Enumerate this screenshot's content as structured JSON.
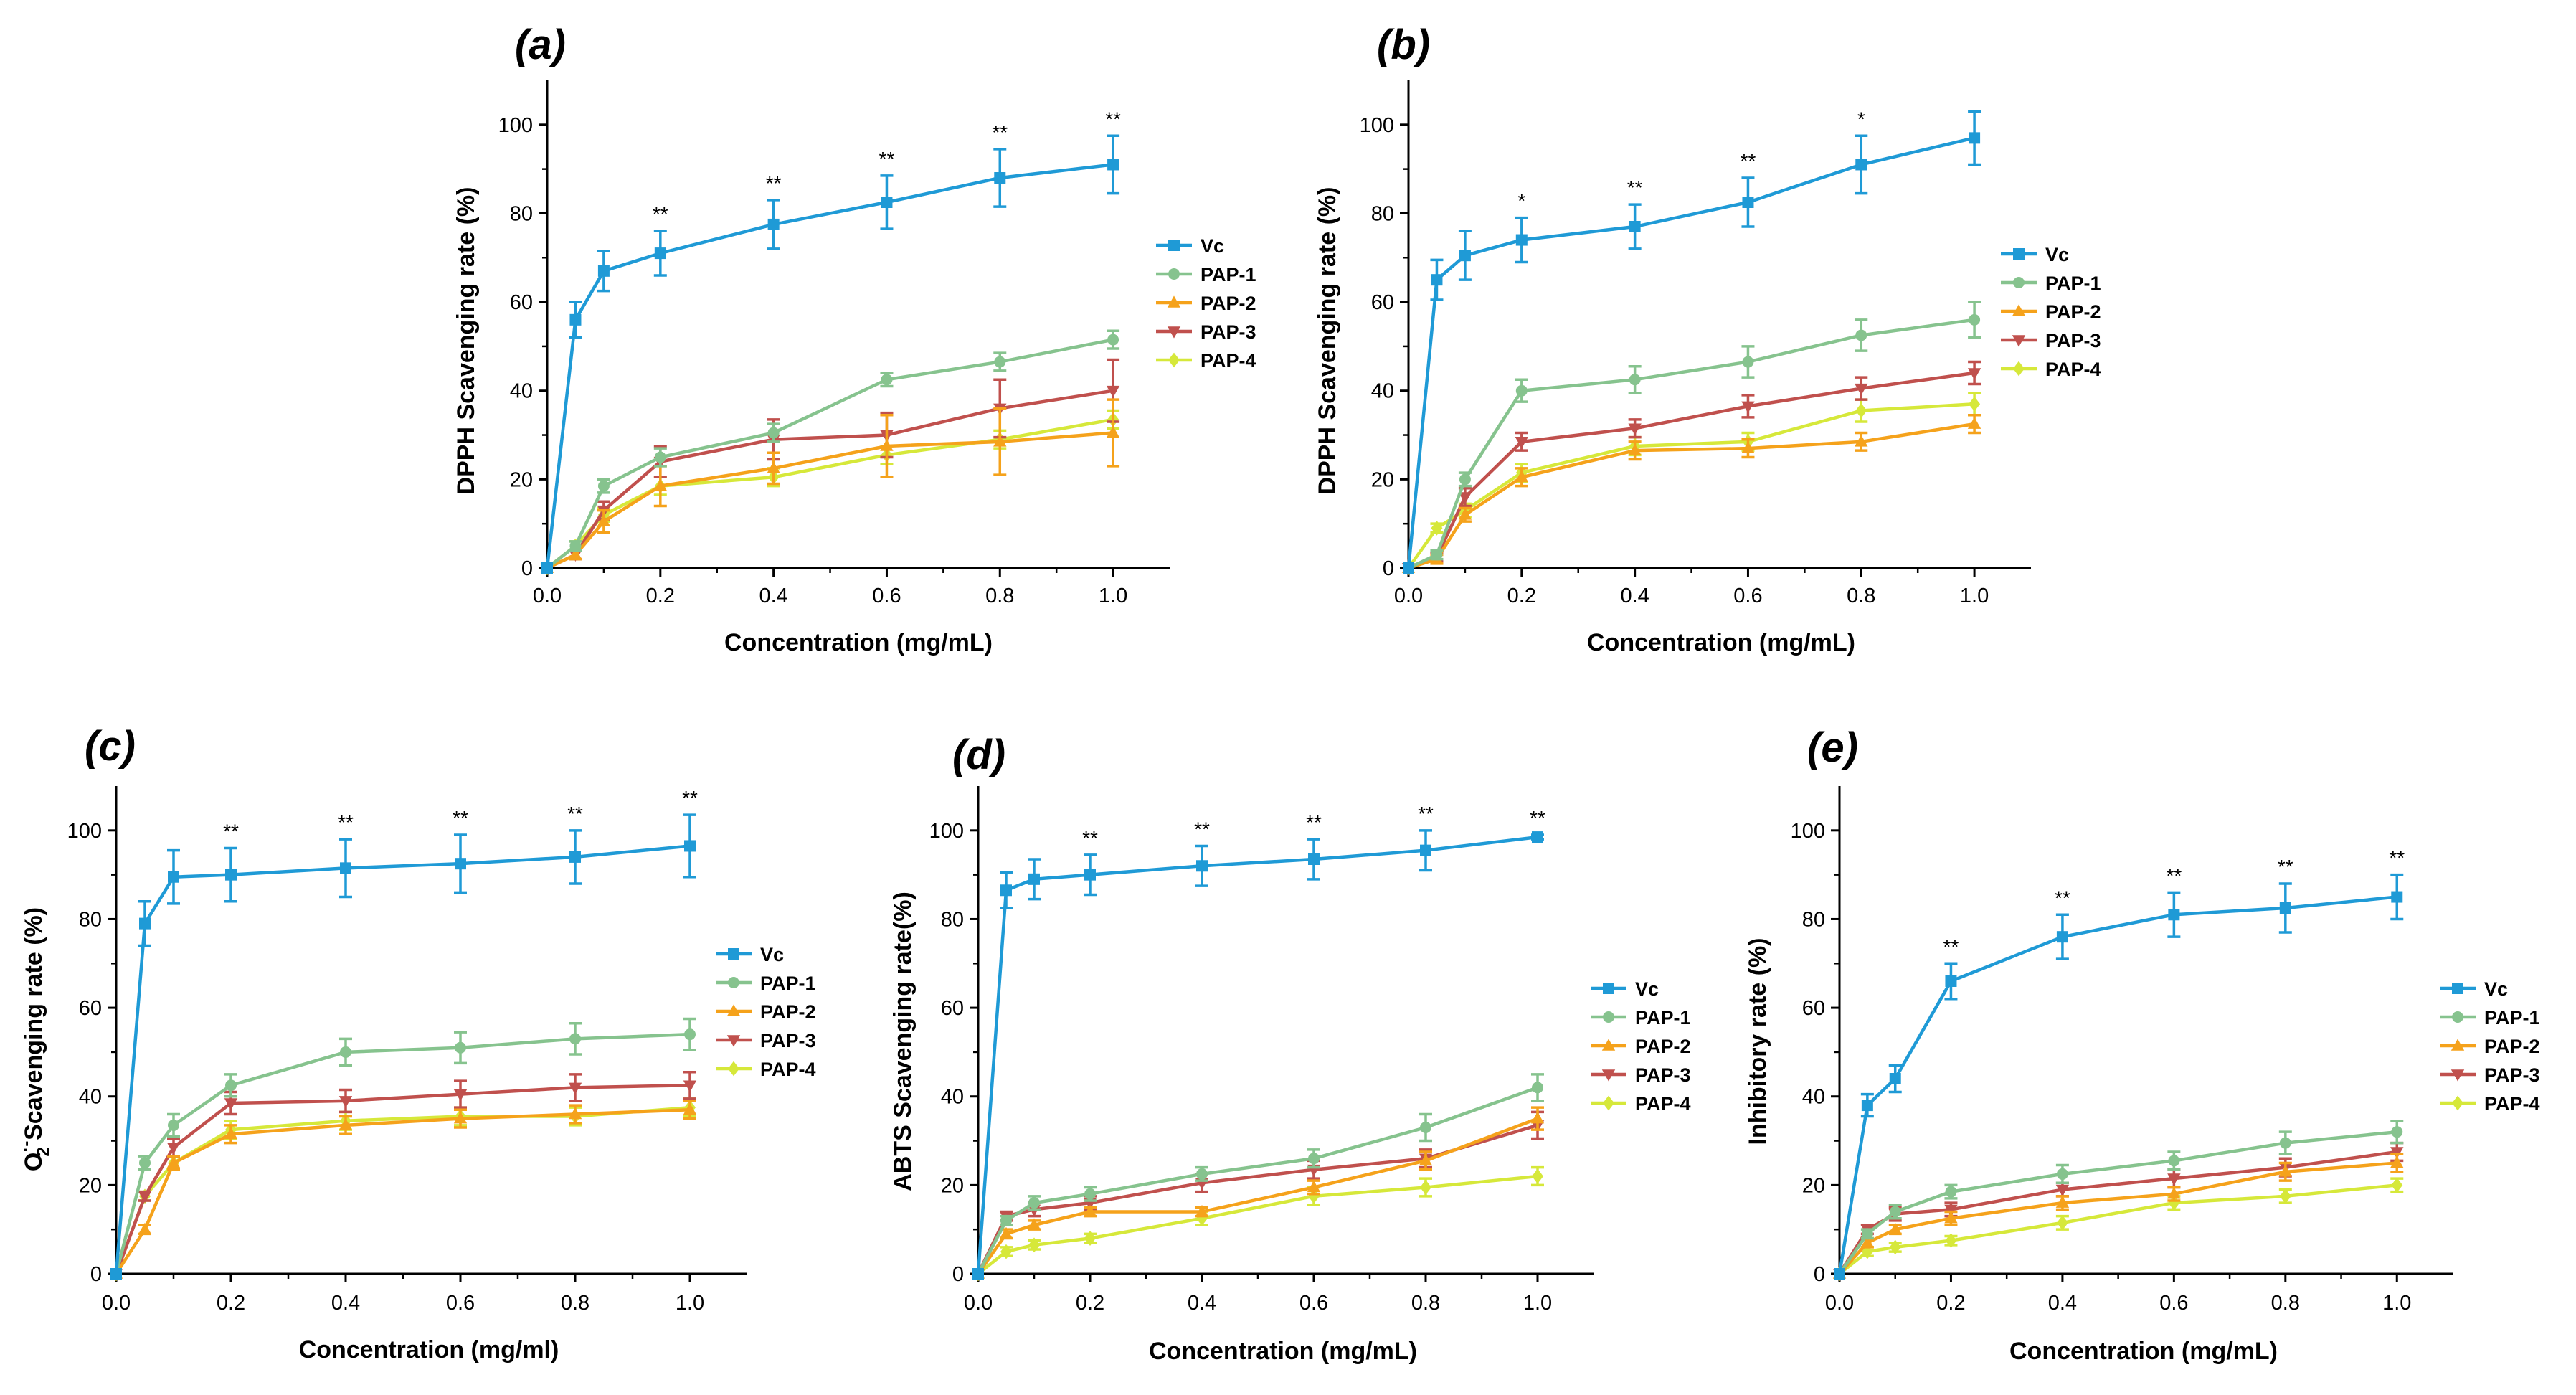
{
  "figure": {
    "panels": [
      "(a)",
      "(b)",
      "(c)",
      "(d)",
      "(e)"
    ]
  },
  "series_colors": {
    "Vc": "#1f9ad6",
    "PAP-1": "#86c38e",
    "PAP-2": "#f5a21b",
    "PAP-3": "#c0504d",
    "PAP-4": "#d6e83a"
  },
  "chart_data": [
    {
      "id": "a",
      "type": "line",
      "panel_label": "(a)",
      "xlabel": "Concentration (mg/mL)",
      "ylabel": "DPPH Scavenging rate (%)",
      "xlim": [
        0.0,
        1.1
      ],
      "ylim": [
        0,
        110
      ],
      "xticks": [
        0.0,
        0.2,
        0.4,
        0.6,
        0.8,
        1.0
      ],
      "xtick_labels": [
        "0.0",
        "0.2",
        "0.4",
        "0.6",
        "0.8",
        "1.0"
      ],
      "yticks": [
        0,
        20,
        40,
        60,
        80,
        100
      ],
      "ytick_labels": [
        "0",
        "20",
        "40",
        "60",
        "80",
        "100"
      ],
      "x": [
        0,
        0.05,
        0.1,
        0.2,
        0.4,
        0.6,
        0.8,
        1.0
      ],
      "series": [
        {
          "name": "Vc",
          "marker": "square",
          "values": [
            0,
            56,
            67,
            71,
            77.5,
            82.5,
            88,
            91
          ],
          "errors": [
            0,
            4,
            4.5,
            5,
            5.5,
            6,
            6.5,
            6.5
          ]
        },
        {
          "name": "PAP-1",
          "marker": "circle",
          "values": [
            0,
            5,
            18.5,
            25,
            30.5,
            42.5,
            46.5,
            51.5
          ],
          "errors": [
            0,
            1,
            1.5,
            2,
            2,
            1.5,
            2,
            2
          ]
        },
        {
          "name": "PAP-2",
          "marker": "triangle-up",
          "values": [
            0,
            3,
            10.5,
            18.5,
            22.5,
            27.5,
            28.5,
            30.5
          ],
          "errors": [
            0,
            1,
            2.5,
            4.5,
            3.5,
            7,
            7.5,
            7.5
          ]
        },
        {
          "name": "PAP-3",
          "marker": "triangle-down",
          "values": [
            0,
            3,
            13,
            24,
            29,
            30,
            36,
            40
          ],
          "errors": [
            0,
            1,
            2,
            3.5,
            4.5,
            5,
            6.5,
            7
          ]
        },
        {
          "name": "PAP-4",
          "marker": "diamond",
          "values": [
            0,
            5,
            12,
            18.5,
            20.5,
            25.5,
            29,
            33.5
          ],
          "errors": [
            0,
            1,
            1.5,
            2,
            2,
            2,
            2,
            2
          ]
        }
      ],
      "significance": [
        {
          "x": 0.2,
          "label": "**"
        },
        {
          "x": 0.4,
          "label": "**"
        },
        {
          "x": 0.6,
          "label": "**"
        },
        {
          "x": 0.8,
          "label": "**"
        },
        {
          "x": 1.0,
          "label": "**"
        }
      ],
      "legend": [
        "Vc",
        "PAP-1",
        "PAP-2",
        "PAP-3",
        "PAP-4"
      ],
      "legend_position": "right"
    },
    {
      "id": "b",
      "type": "line",
      "panel_label": "(b)",
      "xlabel": "Concentration (mg/mL)",
      "ylabel": "DPPH Scavenging rate (%)",
      "xlim": [
        0.0,
        1.1
      ],
      "ylim": [
        0,
        110
      ],
      "xticks": [
        0.0,
        0.2,
        0.4,
        0.6,
        0.8,
        1.0
      ],
      "xtick_labels": [
        "0.0",
        "0.2",
        "0.4",
        "0.6",
        "0.8",
        "1.0"
      ],
      "yticks": [
        0,
        20,
        40,
        60,
        80,
        100
      ],
      "ytick_labels": [
        "0",
        "20",
        "40",
        "60",
        "80",
        "100"
      ],
      "x": [
        0,
        0.05,
        0.1,
        0.2,
        0.4,
        0.6,
        0.8,
        1.0
      ],
      "series": [
        {
          "name": "Vc",
          "marker": "square",
          "values": [
            0,
            65,
            70.5,
            74,
            77,
            82.5,
            91,
            97
          ],
          "errors": [
            0,
            4.5,
            5.5,
            5,
            5,
            5.5,
            6.5,
            6
          ]
        },
        {
          "name": "PAP-1",
          "marker": "circle",
          "values": [
            0,
            3,
            20,
            40,
            42.5,
            46.5,
            52.5,
            56
          ],
          "errors": [
            0,
            1,
            1.5,
            2.5,
            3,
            3.5,
            3.5,
            4
          ]
        },
        {
          "name": "PAP-2",
          "marker": "triangle-up",
          "values": [
            0,
            2,
            12,
            20.5,
            26.5,
            27,
            28.5,
            32.5
          ],
          "errors": [
            0,
            1,
            1.5,
            2,
            2,
            2,
            2,
            2
          ]
        },
        {
          "name": "PAP-3",
          "marker": "triangle-down",
          "values": [
            0,
            2.5,
            16,
            28.5,
            31.5,
            36.5,
            40.5,
            44
          ],
          "errors": [
            0,
            1,
            2,
            2,
            2,
            2.5,
            2.5,
            2.5
          ]
        },
        {
          "name": "PAP-4",
          "marker": "diamond",
          "values": [
            0,
            9,
            13,
            21.5,
            27.5,
            28.5,
            35.5,
            37
          ],
          "errors": [
            0,
            1,
            1.5,
            2,
            2,
            2,
            2.5,
            2.5
          ]
        }
      ],
      "significance": [
        {
          "x": 0.2,
          "label": "*"
        },
        {
          "x": 0.4,
          "label": "**"
        },
        {
          "x": 0.6,
          "label": "**"
        },
        {
          "x": 0.8,
          "label": "*"
        }
      ],
      "legend": [
        "Vc",
        "PAP-1",
        "PAP-2",
        "PAP-3",
        "PAP-4"
      ],
      "legend_position": "right"
    },
    {
      "id": "c",
      "type": "line",
      "panel_label": "(c)",
      "xlabel": "Concentration (mg/ml)",
      "ylabel_prefix": "O",
      "ylabel_superscript": "·-",
      "ylabel_subscript": "2",
      "ylabel_suffix": " Scavenging rate (%)",
      "xlim": [
        0.0,
        1.1
      ],
      "ylim": [
        0,
        110
      ],
      "xticks": [
        0.0,
        0.2,
        0.4,
        0.6,
        0.8,
        1.0
      ],
      "xtick_labels": [
        "0.0",
        "0.2",
        "0.4",
        "0.6",
        "0.8",
        "1.0"
      ],
      "yticks": [
        0,
        20,
        40,
        60,
        80,
        100
      ],
      "ytick_labels": [
        "0",
        "20",
        "40",
        "60",
        "80",
        "100"
      ],
      "x": [
        0,
        0.05,
        0.1,
        0.2,
        0.4,
        0.6,
        0.8,
        1.0
      ],
      "series": [
        {
          "name": "Vc",
          "marker": "square",
          "values": [
            0,
            79,
            89.5,
            90,
            91.5,
            92.5,
            94,
            96.5
          ],
          "errors": [
            0,
            5,
            6,
            6,
            6.5,
            6.5,
            6,
            7
          ]
        },
        {
          "name": "PAP-1",
          "marker": "circle",
          "values": [
            0,
            25,
            33.5,
            42.5,
            50,
            51,
            53,
            54
          ],
          "errors": [
            0,
            1.5,
            2.5,
            2.5,
            3,
            3.5,
            3.5,
            3.5
          ]
        },
        {
          "name": "PAP-2",
          "marker": "triangle-up",
          "values": [
            0,
            10,
            25,
            31.5,
            33.5,
            35,
            36,
            37
          ],
          "errors": [
            0,
            1,
            1.5,
            2,
            2,
            2,
            2,
            2
          ]
        },
        {
          "name": "PAP-3",
          "marker": "triangle-down",
          "values": [
            0,
            17.5,
            28.5,
            38.5,
            39,
            40.5,
            42,
            42.5
          ],
          "errors": [
            0,
            1,
            2,
            2.5,
            2.5,
            3,
            3,
            3
          ]
        },
        {
          "name": "PAP-4",
          "marker": "diamond",
          "values": [
            0,
            17.5,
            25,
            32.5,
            34.5,
            35.5,
            35.5,
            37.5
          ],
          "errors": [
            0,
            1,
            1.5,
            2,
            2,
            2,
            2,
            2
          ]
        }
      ],
      "significance": [
        {
          "x": 0.2,
          "label": "**"
        },
        {
          "x": 0.4,
          "label": "**"
        },
        {
          "x": 0.6,
          "label": "**"
        },
        {
          "x": 0.8,
          "label": "**"
        },
        {
          "x": 1.0,
          "label": "**"
        }
      ],
      "legend": [
        "Vc",
        "PAP-1",
        "PAP-2",
        "PAP-3",
        "PAP-4"
      ],
      "legend_position": "right"
    },
    {
      "id": "d",
      "type": "line",
      "panel_label": "(d)",
      "xlabel": "Concentration (mg/mL)",
      "ylabel": "ABTS Scavenging rate(%)",
      "xlim": [
        0.0,
        1.1
      ],
      "ylim": [
        0,
        110
      ],
      "xticks": [
        0.0,
        0.2,
        0.4,
        0.6,
        0.8,
        1.0
      ],
      "xtick_labels": [
        "0.0",
        "0.2",
        "0.4",
        "0.6",
        "0.8",
        "1.0"
      ],
      "yticks": [
        0,
        20,
        40,
        60,
        80,
        100
      ],
      "ytick_labels": [
        "0",
        "20",
        "40",
        "60",
        "80",
        "100"
      ],
      "x": [
        0,
        0.05,
        0.1,
        0.2,
        0.4,
        0.6,
        0.8,
        1.0
      ],
      "series": [
        {
          "name": "Vc",
          "marker": "square",
          "values": [
            0,
            86.5,
            89,
            90,
            92,
            93.5,
            95.5,
            98.5
          ],
          "errors": [
            0,
            4,
            4.5,
            4.5,
            4.5,
            4.5,
            4.5,
            0.5
          ]
        },
        {
          "name": "PAP-1",
          "marker": "circle",
          "values": [
            0,
            12,
            16,
            18,
            22.5,
            26,
            33,
            42
          ],
          "errors": [
            0,
            1,
            1.5,
            1.5,
            1.5,
            2,
            3,
            3
          ]
        },
        {
          "name": "PAP-2",
          "marker": "triangle-up",
          "values": [
            0,
            9,
            11,
            14,
            14,
            19.5,
            25.5,
            35
          ],
          "errors": [
            0,
            1,
            1,
            1,
            1,
            1.5,
            2,
            2.5
          ]
        },
        {
          "name": "PAP-3",
          "marker": "triangle-down",
          "values": [
            0,
            13,
            14.5,
            16,
            20.5,
            23.5,
            26,
            33.5
          ],
          "errors": [
            0,
            1,
            1.5,
            1.5,
            2,
            2,
            2,
            3
          ]
        },
        {
          "name": "PAP-4",
          "marker": "diamond",
          "values": [
            0,
            5,
            6.5,
            8,
            12.5,
            17.5,
            19.5,
            22
          ],
          "errors": [
            0,
            1,
            1,
            1,
            1.5,
            2,
            2,
            2
          ]
        }
      ],
      "significance": [
        {
          "x": 0.2,
          "label": "**"
        },
        {
          "x": 0.4,
          "label": "**"
        },
        {
          "x": 0.6,
          "label": "**"
        },
        {
          "x": 0.8,
          "label": "**"
        },
        {
          "x": 1.0,
          "label": "**"
        }
      ],
      "legend": [
        "Vc",
        "PAP-1",
        "PAP-2",
        "PAP-3",
        "PAP-4"
      ],
      "legend_position": "right"
    },
    {
      "id": "e",
      "type": "line",
      "panel_label": "(e)",
      "xlabel": "Concentration (mg/mL)",
      "ylabel": "Inhibitory rate (%)",
      "xlim": [
        0.0,
        1.1
      ],
      "ylim": [
        0,
        110
      ],
      "xticks": [
        0.0,
        0.2,
        0.4,
        0.6,
        0.8,
        1.0
      ],
      "xtick_labels": [
        "0.0",
        "0.2",
        "0.4",
        "0.6",
        "0.8",
        "1.0"
      ],
      "yticks": [
        0,
        20,
        40,
        60,
        80,
        100
      ],
      "ytick_labels": [
        "0",
        "20",
        "40",
        "60",
        "80",
        "100"
      ],
      "x": [
        0,
        0.05,
        0.1,
        0.2,
        0.4,
        0.6,
        0.8,
        1.0
      ],
      "series": [
        {
          "name": "Vc",
          "marker": "square",
          "values": [
            0,
            38,
            44,
            66,
            76,
            81,
            82.5,
            85
          ],
          "errors": [
            0,
            2.5,
            3,
            4,
            5,
            5,
            5.5,
            5
          ]
        },
        {
          "name": "PAP-1",
          "marker": "circle",
          "values": [
            0,
            9,
            14,
            18.5,
            22.5,
            25.5,
            29.5,
            32
          ],
          "errors": [
            0,
            1,
            1.5,
            1.5,
            2,
            2,
            2.5,
            2.5
          ]
        },
        {
          "name": "PAP-2",
          "marker": "triangle-up",
          "values": [
            0,
            7,
            10,
            12.5,
            16,
            18,
            23,
            25
          ],
          "errors": [
            0,
            1,
            1,
            1.5,
            1.5,
            1.5,
            2,
            2
          ]
        },
        {
          "name": "PAP-3",
          "marker": "triangle-down",
          "values": [
            0,
            10,
            13.5,
            14.5,
            19,
            21.5,
            24,
            27.5
          ],
          "errors": [
            0,
            1,
            1.5,
            1.5,
            1.5,
            2,
            2,
            2
          ]
        },
        {
          "name": "PAP-4",
          "marker": "diamond",
          "values": [
            0,
            5,
            6,
            7.5,
            11.5,
            16,
            17.5,
            20
          ],
          "errors": [
            0,
            1,
            1,
            1,
            1.5,
            1.5,
            1.5,
            1.5
          ]
        }
      ],
      "significance": [
        {
          "x": 0.2,
          "label": "**"
        },
        {
          "x": 0.4,
          "label": "**"
        },
        {
          "x": 0.6,
          "label": "**"
        },
        {
          "x": 0.8,
          "label": "**"
        },
        {
          "x": 1.0,
          "label": "**"
        }
      ],
      "legend": [
        "Vc",
        "PAP-1",
        "PAP-2",
        "PAP-3",
        "PAP-4"
      ],
      "legend_position": "right"
    }
  ]
}
